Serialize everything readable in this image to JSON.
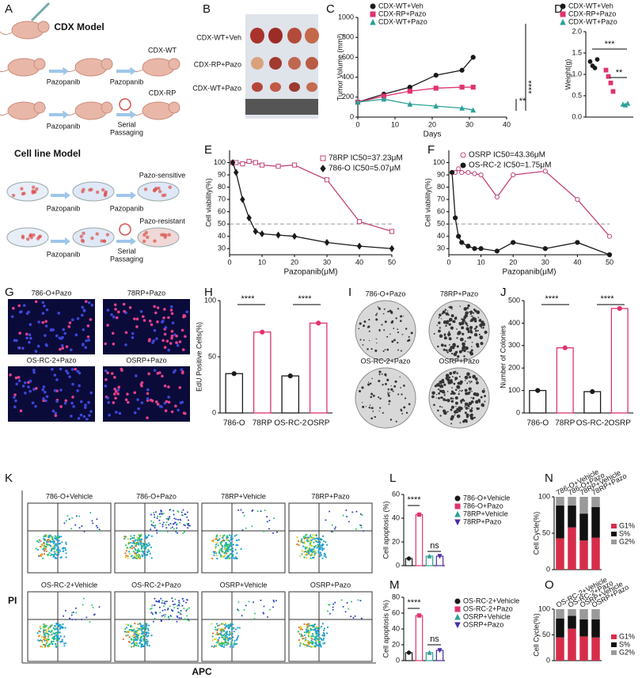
{
  "figure": {
    "A": {
      "label": "A",
      "texts": [
        "CDX Model",
        "CDX-WT",
        "Pazopanib",
        "Pazopanib",
        "CDX-RP",
        "Pazopanib",
        "Serial",
        "Passaging",
        "Cell line Model",
        "Pazo-sensitive",
        "Pazopanib",
        "Pazopanib",
        "Pazo-resistant",
        "Pazopanib",
        "Serial",
        "Passaging"
      ]
    },
    "B": {
      "label": "B",
      "rows": [
        "CDX-WT+Veh",
        "CDX-RP+Pazo",
        "CDX-WT+Pazo"
      ]
    },
    "G": {
      "label": "G",
      "images": [
        "786-O+Pazo",
        "78RP+Pazo",
        "OS-RC-2+Pazo",
        "OSRP+Pazo"
      ]
    },
    "I": {
      "label": "I",
      "images": [
        "786-O+Pazo",
        "78RP+Pazo",
        "OS-RC-2+Pazo",
        "OSRP+Pazo"
      ]
    },
    "K": {
      "label": "K",
      "plots": [
        "786-O+Vehicle",
        "786-O+Pazo",
        "78RP+Vehicle",
        "78RP+Pazo",
        "OS-RC-2+Vehicle",
        "OS-RC-2+Pazo",
        "OSRP+Vehicle",
        "OSRP+Pazo"
      ],
      "ylabel": "PI",
      "xlabel": "APC"
    }
  },
  "chart_data": [
    {
      "label": "C",
      "type": "line",
      "x": [
        0,
        7,
        14,
        21,
        28,
        31
      ],
      "xlim": [
        0,
        40
      ],
      "xticks": [
        0,
        10,
        20,
        30,
        40
      ],
      "ylim": [
        0,
        1000
      ],
      "yticks": [
        0,
        200,
        400,
        600,
        800,
        1000
      ],
      "xlabel": "Days",
      "ylabel": "Tumor Volume (mm³)",
      "series": [
        {
          "name": "CDX-WT+Veh",
          "color": "#1a1a1a",
          "marker": "circle",
          "values": [
            150,
            230,
            300,
            420,
            470,
            600
          ]
        },
        {
          "name": "CDX-RP+Pazo",
          "color": "#e0336e",
          "marker": "square",
          "values": [
            150,
            210,
            260,
            290,
            300,
            300
          ]
        },
        {
          "name": "CDX-WT+Pazo",
          "color": "#2aa198",
          "marker": "triangle",
          "values": [
            150,
            180,
            130,
            110,
            90,
            70
          ]
        }
      ],
      "annotations": [
        "****",
        "**"
      ]
    },
    {
      "label": "D",
      "type": "dot",
      "ylim": [
        0,
        2
      ],
      "yticks": [
        {
          "value": 0,
          "label": "0.0"
        },
        {
          "value": 0.5,
          "label": "0.5"
        },
        {
          "value": 1,
          "label": "1.0"
        },
        {
          "value": 1.5,
          "label": "1.5"
        },
        {
          "value": 2,
          "label": "2.0"
        }
      ],
      "ylabel": "Weight(g)",
      "series": [
        {
          "name": "CDX-WT+Veh",
          "color": "#1a1a1a",
          "marker": "circle",
          "values": [
            1.3,
            1.2,
            1.15,
            1.35
          ]
        },
        {
          "name": "CDX-RP+Pazo",
          "color": "#e0336e",
          "marker": "square",
          "values": [
            1.1,
            0.95,
            0.8,
            0.6
          ]
        },
        {
          "name": "CDX-WT+Pazo",
          "color": "#2aa198",
          "marker": "triangle",
          "values": [
            0.3,
            0.28,
            0.32
          ]
        }
      ],
      "annotations": [
        "***",
        "**"
      ]
    },
    {
      "label": "E",
      "type": "line",
      "x": [
        1,
        2,
        4,
        6,
        8,
        10,
        15,
        20,
        30,
        40,
        50
      ],
      "xlim": [
        0,
        50
      ],
      "xticks": [
        0,
        10,
        20,
        30,
        40,
        50
      ],
      "ylim": [
        25,
        110
      ],
      "yticks": [
        30,
        40,
        50,
        60,
        70,
        80,
        90,
        100
      ],
      "xlabel": "Pazopanib(μM)",
      "ylabel": "Cell viability(%)",
      "reference_line": 50,
      "series": [
        {
          "name": "78RP IC50=37.23μM",
          "color": "#c2447a",
          "marker": "open-square",
          "values": [
            100,
            100,
            99,
            101,
            100,
            98,
            97,
            98,
            86,
            52,
            44
          ]
        },
        {
          "name": "786-O IC50=5.07μM",
          "color": "#1a1a1a",
          "marker": "diamond",
          "values": [
            100,
            92,
            70,
            55,
            44,
            42,
            41,
            40,
            35,
            32,
            30
          ]
        }
      ]
    },
    {
      "label": "F",
      "type": "line",
      "x": [
        1,
        2,
        3,
        4,
        6,
        8,
        10,
        15,
        20,
        30,
        40,
        50
      ],
      "xlim": [
        0,
        50
      ],
      "xticks": [
        0,
        10,
        20,
        30,
        40,
        50
      ],
      "ylim": [
        25,
        110
      ],
      "yticks": [
        30,
        40,
        50,
        60,
        70,
        80,
        90,
        100
      ],
      "xlabel": "Pazopanib(μM)",
      "ylabel": "Cell viability(%)",
      "reference_line": 50,
      "series": [
        {
          "name": "OSRP IC50=43.36μM",
          "color": "#c2447a",
          "marker": "open-circle",
          "values": [
            92,
            92,
            95,
            92,
            92,
            91,
            90,
            72,
            90,
            93,
            70,
            40
          ]
        },
        {
          "name": "OS-RC-2 IC50=1.75μM",
          "color": "#1a1a1a",
          "marker": "circle",
          "values": [
            92,
            55,
            40,
            35,
            32,
            30,
            30,
            28,
            35,
            30,
            35,
            25
          ]
        }
      ]
    },
    {
      "label": "H",
      "type": "bar",
      "categories": [
        "786-O",
        "78RP",
        "OS-RC-2",
        "OSRP"
      ],
      "values": [
        35,
        72,
        33,
        80
      ],
      "colors": [
        "#1a1a1a",
        "#e0336e",
        "#1a1a1a",
        "#e0336e"
      ],
      "ylim": [
        0,
        100
      ],
      "yticks": [
        0,
        50,
        100
      ],
      "ylabel": "EdU Positive Cells(%)",
      "annotations": [
        "****",
        "****"
      ]
    },
    {
      "label": "J",
      "type": "bar",
      "categories": [
        "786-O",
        "78RP",
        "OS-RC-2",
        "OSRP"
      ],
      "values": [
        100,
        290,
        95,
        465
      ],
      "colors": [
        "#1a1a1a",
        "#e0336e",
        "#1a1a1a",
        "#e0336e"
      ],
      "ylim": [
        0,
        500
      ],
      "yticks": [
        0,
        100,
        200,
        300,
        400,
        500
      ],
      "ylabel": "Number of Colonies",
      "annotations": [
        "****",
        "****"
      ]
    },
    {
      "label": "L",
      "type": "grouped-bar",
      "ylim": [
        0,
        60
      ],
      "yticks": [
        0,
        20,
        40,
        60
      ],
      "ylabel": "Cell apoptosis (%)",
      "series": [
        {
          "name": "786-O+Vehicle",
          "color": "#1a1a1a",
          "marker": "circle",
          "values": [
            6
          ]
        },
        {
          "name": "786-O+Pazo",
          "color": "#e0336e",
          "marker": "square",
          "values": [
            43
          ]
        },
        {
          "name": "78RP+Vehicle",
          "color": "#2aa198",
          "marker": "triangle",
          "values": [
            8
          ]
        },
        {
          "name": "78RP+Pazo",
          "color": "#4b2ca8",
          "marker": "triangle-down",
          "values": [
            8
          ]
        }
      ],
      "annotations": [
        "****",
        "ns"
      ]
    },
    {
      "label": "M",
      "type": "grouped-bar",
      "ylim": [
        0,
        80
      ],
      "yticks": [
        0,
        20,
        40,
        60,
        80
      ],
      "ylabel": "Cell apoptosis (%)",
      "series": [
        {
          "name": "OS-RC-2+Vehicle",
          "color": "#1a1a1a",
          "marker": "circle",
          "values": [
            10
          ]
        },
        {
          "name": "OS-RC-2+Pazo",
          "color": "#e0336e",
          "marker": "square",
          "values": [
            57
          ]
        },
        {
          "name": "OSRP+Vehicle",
          "color": "#2aa198",
          "marker": "triangle",
          "values": [
            10
          ]
        },
        {
          "name": "OSRP+Pazo",
          "color": "#4b2ca8",
          "marker": "triangle-down",
          "values": [
            13
          ]
        }
      ],
      "annotations": [
        "****",
        "ns"
      ]
    },
    {
      "label": "N",
      "type": "stacked",
      "categories": [
        "786-O+Vehicle",
        "786-O+Pazo",
        "78RP+Vehicle",
        "78RP+Pazo"
      ],
      "ylim": [
        0,
        100
      ],
      "yticks": [
        0,
        50,
        100
      ],
      "ylabel": "Cell Cycle(%)",
      "series": [
        {
          "name": "G1%",
          "color": "#d62d4a",
          "values": [
            43,
            58,
            40,
            44
          ]
        },
        {
          "name": "S%",
          "color": "#111111",
          "values": [
            45,
            30,
            37,
            42
          ]
        },
        {
          "name": "G2%",
          "color": "#9a9a9a",
          "values": [
            12,
            12,
            23,
            14
          ]
        }
      ]
    },
    {
      "label": "O",
      "type": "stacked",
      "categories": [
        "OS-RC-2+Vehicle",
        "OS-RC-2+Pazo",
        "OSRP+Vehicle",
        "OSRP+Pazo"
      ],
      "ylim": [
        0,
        100
      ],
      "yticks": [
        0,
        50,
        100
      ],
      "ylabel": "Cell Cycle(%)",
      "series": [
        {
          "name": "G1%",
          "color": "#d62d4a",
          "values": [
            45,
            62,
            47,
            45
          ]
        },
        {
          "name": "S%",
          "color": "#111111",
          "values": [
            37,
            25,
            33,
            35
          ]
        },
        {
          "name": "G2%",
          "color": "#9a9a9a",
          "values": [
            18,
            13,
            20,
            20
          ]
        }
      ]
    }
  ]
}
